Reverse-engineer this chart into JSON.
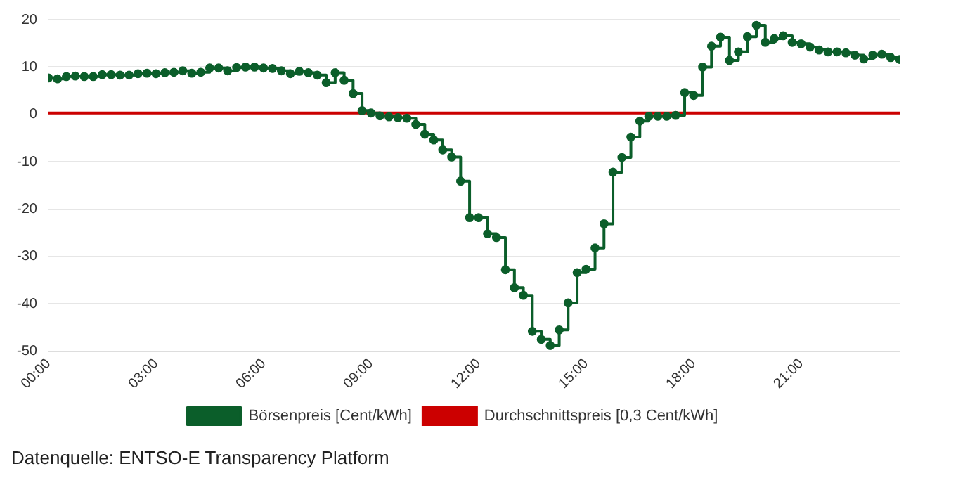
{
  "chart_data": {
    "type": "step",
    "x": [
      0,
      0.25,
      0.5,
      0.75,
      1,
      1.25,
      1.5,
      1.75,
      2,
      2.25,
      2.5,
      2.75,
      3,
      3.25,
      3.5,
      3.75,
      4,
      4.25,
      4.5,
      4.75,
      5,
      5.25,
      5.5,
      5.75,
      6,
      6.25,
      6.5,
      6.75,
      7,
      7.25,
      7.5,
      7.75,
      8,
      8.25,
      8.5,
      8.75,
      9,
      9.25,
      9.5,
      9.75,
      10,
      10.25,
      10.5,
      10.75,
      11,
      11.25,
      11.5,
      11.75,
      12,
      12.25,
      12.5,
      12.75,
      13,
      13.25,
      13.5,
      13.75,
      14,
      14.25,
      14.5,
      14.75,
      15,
      15.25,
      15.5,
      15.75,
      16,
      16.25,
      16.5,
      16.75,
      17,
      17.25,
      17.5,
      17.75,
      18,
      18.25,
      18.5,
      18.75,
      19,
      19.25,
      19.5,
      19.75,
      20,
      20.25,
      20.5,
      20.75,
      21,
      21.25,
      21.5,
      21.75,
      22,
      22.25,
      22.5,
      22.75,
      23,
      23.25,
      23.5,
      23.75
    ],
    "series": [
      {
        "name": "Börsenpreis [Cent/kWh]",
        "color": "#0b5e2a",
        "values": [
          7.7,
          7.5,
          8.0,
          8.1,
          8.0,
          8.0,
          8.4,
          8.4,
          8.3,
          8.3,
          8.6,
          8.7,
          8.6,
          8.8,
          8.9,
          9.2,
          8.7,
          8.9,
          9.8,
          9.8,
          9.2,
          9.9,
          10.0,
          10.0,
          9.8,
          9.7,
          9.2,
          8.6,
          9.1,
          8.8,
          8.3,
          6.7,
          8.8,
          7.2,
          4.4,
          0.8,
          0.3,
          -0.3,
          -0.5,
          -0.7,
          -0.8,
          -2.1,
          -4.2,
          -5.4,
          -7.5,
          -9.0,
          -14.1,
          -21.8,
          -21.8,
          -25.2,
          -26.0,
          -32.8,
          -36.6,
          -38.2,
          -45.8,
          -47.5,
          -48.8,
          -45.5,
          -39.8,
          -33.4,
          -32.7,
          -28.2,
          -23.1,
          -12.2,
          -9.1,
          -4.8,
          -1.4,
          -0.4,
          -0.4,
          -0.4,
          -0.2,
          4.6,
          4.0,
          10.0,
          14.4,
          16.3,
          11.4,
          13.2,
          16.4,
          18.8,
          15.2,
          16.0,
          16.6,
          15.2,
          14.9,
          14.2,
          13.6,
          13.2,
          13.2,
          13.0,
          12.5,
          11.7,
          12.5,
          12.7,
          12.0,
          11.6
        ]
      }
    ],
    "ref_lines": [
      {
        "axis": "y",
        "value": 0.3,
        "label": "Durchschnittspreis [0,3 Cent/kWh]",
        "color": "#cc0000"
      }
    ],
    "xlim": [
      0,
      23.75
    ],
    "xticks": [
      {
        "value": 0,
        "label": "00:00"
      },
      {
        "value": 3,
        "label": "03:00"
      },
      {
        "value": 6,
        "label": "06:00"
      },
      {
        "value": 9,
        "label": "09:00"
      },
      {
        "value": 12,
        "label": "12:00"
      },
      {
        "value": 15,
        "label": "15:00"
      },
      {
        "value": 18,
        "label": "18:00"
      },
      {
        "value": 21,
        "label": "21:00"
      }
    ],
    "ylim": [
      -50,
      20
    ],
    "yticks": [
      -50,
      -40,
      -30,
      -20,
      -10,
      0,
      10,
      20
    ],
    "grid": "y",
    "legend": "bottom",
    "marker": "circle",
    "annotations": [
      "Datenquelle: ENTSO-E Transparency Platform"
    ]
  }
}
